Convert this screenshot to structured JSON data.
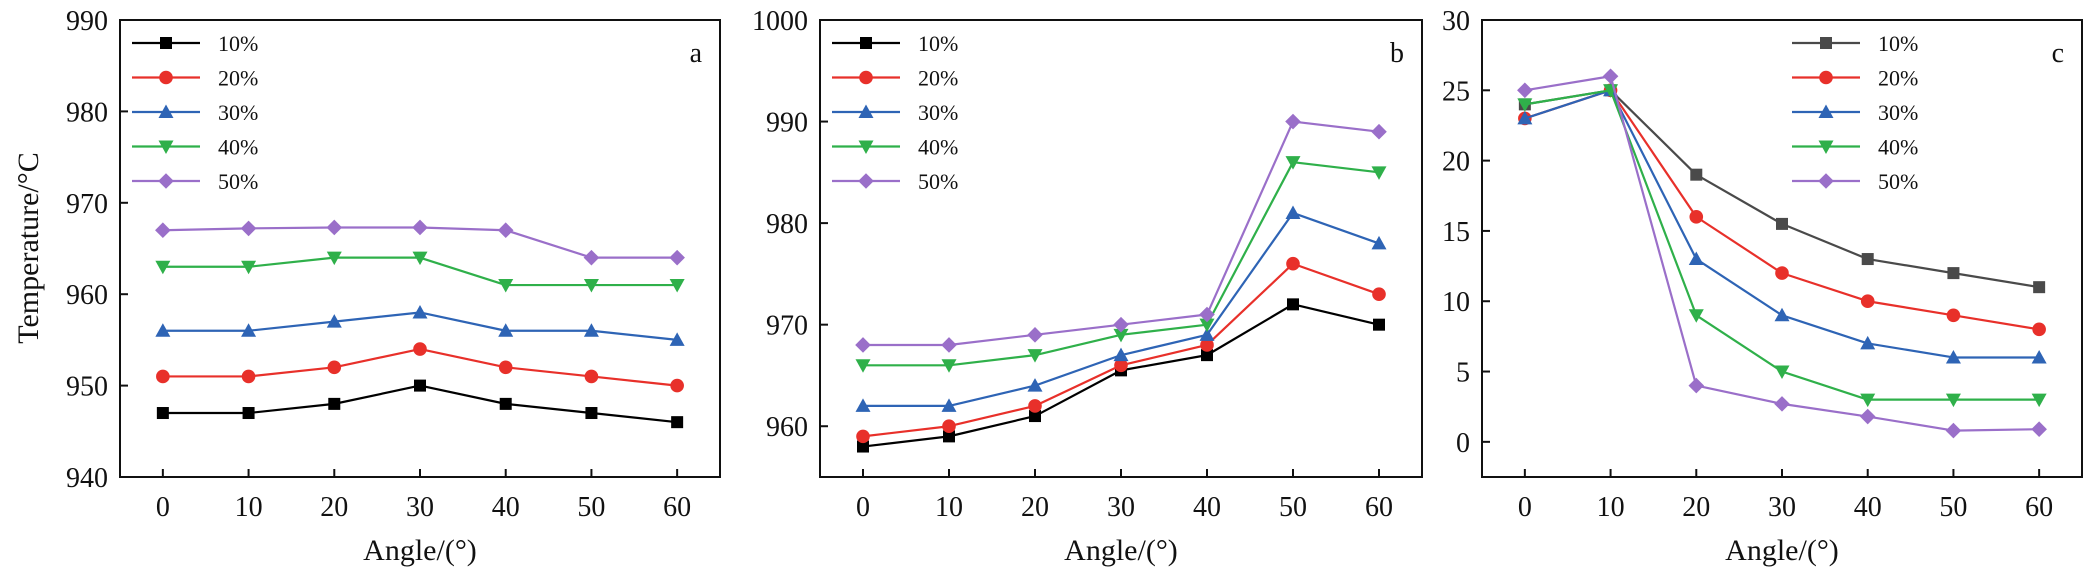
{
  "chart_data": [
    {
      "panel": "a",
      "type": "line",
      "x": [
        0,
        10,
        20,
        30,
        40,
        50,
        60
      ],
      "xlabel": "Angle/(°)",
      "ylabel": "Temperature/°C",
      "xlim": [
        -5,
        65
      ],
      "ylim": [
        940,
        990
      ],
      "xticks": [
        "0",
        "10",
        "20",
        "30",
        "40",
        "50",
        "60"
      ],
      "yticks": [
        "940",
        "950",
        "960",
        "970",
        "980",
        "990"
      ],
      "legend_position": "top-left",
      "series": [
        {
          "name": "10%",
          "color": "#000000",
          "marker": "square",
          "values": [
            947,
            947,
            948,
            950,
            948,
            947,
            946
          ]
        },
        {
          "name": "20%",
          "color": "#e8302a",
          "marker": "circle",
          "values": [
            951,
            951,
            952,
            954,
            952,
            951,
            950
          ]
        },
        {
          "name": "30%",
          "color": "#2e64b5",
          "marker": "triangle-up",
          "values": [
            956,
            956,
            957,
            958,
            956,
            956,
            955
          ]
        },
        {
          "name": "40%",
          "color": "#2fb04a",
          "marker": "triangle-down",
          "values": [
            963,
            963,
            964,
            964,
            961,
            961,
            961
          ]
        },
        {
          "name": "50%",
          "color": "#9a6fc9",
          "marker": "diamond",
          "values": [
            967,
            967.2,
            967.3,
            967.3,
            967,
            964,
            964
          ]
        }
      ]
    },
    {
      "panel": "b",
      "type": "line",
      "x": [
        0,
        10,
        20,
        30,
        40,
        50,
        60
      ],
      "xlabel": "Angle/(°)",
      "ylabel": "",
      "xlim": [
        -5,
        65
      ],
      "ylim": [
        955,
        1000
      ],
      "xticks": [
        "0",
        "10",
        "20",
        "30",
        "40",
        "50",
        "60"
      ],
      "yticks": [
        "960",
        "970",
        "980",
        "990",
        "1000"
      ],
      "legend_position": "top-left",
      "series": [
        {
          "name": "10%",
          "color": "#000000",
          "marker": "square",
          "values": [
            958,
            959,
            961,
            965.5,
            967,
            972,
            970
          ]
        },
        {
          "name": "20%",
          "color": "#e8302a",
          "marker": "circle",
          "values": [
            959,
            960,
            962,
            966,
            968,
            976,
            973
          ]
        },
        {
          "name": "30%",
          "color": "#2e64b5",
          "marker": "triangle-up",
          "values": [
            962,
            962,
            964,
            967,
            969,
            981,
            978
          ]
        },
        {
          "name": "40%",
          "color": "#2fb04a",
          "marker": "triangle-down",
          "values": [
            966,
            966,
            967,
            969,
            970,
            986,
            985
          ]
        },
        {
          "name": "50%",
          "color": "#9a6fc9",
          "marker": "diamond",
          "values": [
            968,
            968,
            969,
            970,
            971,
            990,
            989
          ]
        }
      ]
    },
    {
      "panel": "c",
      "type": "line",
      "x": [
        0,
        10,
        20,
        30,
        40,
        50,
        60
      ],
      "xlabel": "Angle/(°)",
      "ylabel": "",
      "xlim": [
        -5,
        65
      ],
      "ylim": [
        -2.5,
        30
      ],
      "xticks": [
        "0",
        "10",
        "20",
        "30",
        "40",
        "50",
        "60"
      ],
      "yticks": [
        "0",
        "5",
        "10",
        "15",
        "20",
        "25",
        "30"
      ],
      "legend_position": "top-right",
      "series": [
        {
          "name": "10%",
          "color": "#4a4a4a",
          "marker": "square",
          "values": [
            24,
            25,
            19,
            15.5,
            13,
            12,
            11
          ]
        },
        {
          "name": "20%",
          "color": "#e8302a",
          "marker": "circle",
          "values": [
            23,
            25,
            16,
            12,
            10,
            9,
            8
          ]
        },
        {
          "name": "30%",
          "color": "#2e64b5",
          "marker": "triangle-up",
          "values": [
            23,
            25,
            13,
            9,
            7,
            6,
            6
          ]
        },
        {
          "name": "40%",
          "color": "#2fb04a",
          "marker": "triangle-down",
          "values": [
            24,
            25,
            9,
            5,
            3,
            3,
            3
          ]
        },
        {
          "name": "50%",
          "color": "#9a6fc9",
          "marker": "diamond",
          "values": [
            25,
            26,
            4,
            2.7,
            1.8,
            0.8,
            0.9
          ]
        }
      ]
    }
  ]
}
